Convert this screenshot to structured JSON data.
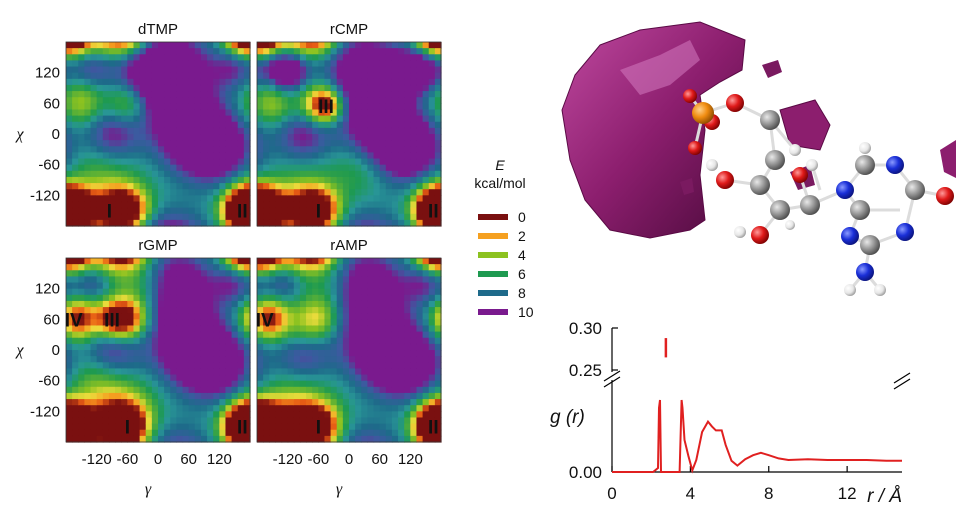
{
  "chart_data": [
    {
      "type": "heatmap",
      "panels": [
        {
          "title": "dTMP",
          "labels": [
            {
              "text": "I",
              "x": -95,
              "chi": -150
            },
            {
              "text": "II",
              "x": 165,
              "chi": -150
            }
          ]
        },
        {
          "title": "rCMP",
          "labels": [
            {
              "text": "III",
              "x": -45,
              "chi": 55
            },
            {
              "text": "I",
              "x": -60,
              "chi": -150
            },
            {
              "text": "II",
              "x": 165,
              "chi": -150
            }
          ]
        },
        {
          "title": "rGMP",
          "labels": [
            {
              "text": "IV",
              "x": -165,
              "chi": 60
            },
            {
              "text": "III",
              "x": -90,
              "chi": 60
            },
            {
              "text": "I",
              "x": -60,
              "chi": -150
            },
            {
              "text": "II",
              "x": 165,
              "chi": -150
            }
          ]
        },
        {
          "title": "rAMP",
          "labels": [
            {
              "text": "IV",
              "x": -165,
              "chi": 60
            },
            {
              "text": "I",
              "x": -60,
              "chi": -150
            },
            {
              "text": "II",
              "x": 165,
              "chi": -150
            }
          ]
        }
      ],
      "xlabel": "γ",
      "ylabel": "χ",
      "xticks": [
        "-120",
        "-60",
        "0",
        "60",
        "120"
      ],
      "xtick_values": [
        -120,
        -60,
        0,
        60,
        120
      ],
      "yticks": [
        "120",
        "60",
        "0",
        "-60",
        "-120"
      ],
      "ytick_values": [
        120,
        60,
        0,
        -60,
        -120
      ],
      "xlim": [
        -180,
        180
      ],
      "ylim": [
        -180,
        180
      ],
      "colorbar": {
        "title_symbol": "E",
        "title_unit": "kcal/mol",
        "levels": [
          {
            "label": "0",
            "color": "#7a1010"
          },
          {
            "label": "2",
            "color": "#f5a020"
          },
          {
            "label": "4",
            "color": "#8cc220"
          },
          {
            "label": "6",
            "color": "#1e9a50"
          },
          {
            "label": "8",
            "color": "#1e6a8a"
          },
          {
            "label": "10",
            "color": "#7a1a8e"
          }
        ]
      }
    },
    {
      "type": "line",
      "series": [
        {
          "x": [
            0,
            2.1,
            2.35,
            2.4,
            2.45,
            2.5,
            3.45,
            3.55,
            3.6,
            3.7,
            3.9,
            4.1,
            4.3,
            4.6,
            4.9,
            5.1,
            5.3,
            5.6,
            5.8,
            6.1,
            6.4,
            6.8,
            7.2,
            7.6,
            8.0,
            8.5,
            9.0,
            10.0,
            11.0,
            12.0,
            13.0,
            14.0,
            14.8
          ],
          "y": [
            0.0,
            0.0,
            0.005,
            0.08,
            0.09,
            0.0,
            0.0,
            0.09,
            0.08,
            0.04,
            0.02,
            0.002,
            0.015,
            0.05,
            0.063,
            0.057,
            0.052,
            0.052,
            0.034,
            0.014,
            0.008,
            0.016,
            0.021,
            0.024,
            0.021,
            0.017,
            0.015,
            0.016,
            0.015,
            0.015,
            0.015,
            0.014,
            0.014
          ],
          "color": "#e02020"
        }
      ],
      "inset_peak": {
        "x": 2.75,
        "y_range": [
          0.265,
          0.288
        ]
      },
      "xticks": [
        "0",
        "4",
        "8",
        "12"
      ],
      "xtick_values": [
        0,
        4,
        8,
        12
      ],
      "yticks_lower": [
        "0.00"
      ],
      "yticks_upper": [
        "0.25",
        "0.30"
      ],
      "xlim": [
        0,
        14.8
      ],
      "ylim_lower": [
        0,
        0.1
      ],
      "ylim_upper": [
        0.25,
        0.3
      ],
      "ylabel": "g (r)",
      "xlabel": "r / Å"
    }
  ],
  "molecule": {
    "surface_color": "#8c1e6e",
    "atom_colors": {
      "P": "#f08c10",
      "O": "#e01a1a",
      "C": "#9a9a9a",
      "N": "#1a2fd8",
      "H": "#f0f0f0"
    }
  }
}
